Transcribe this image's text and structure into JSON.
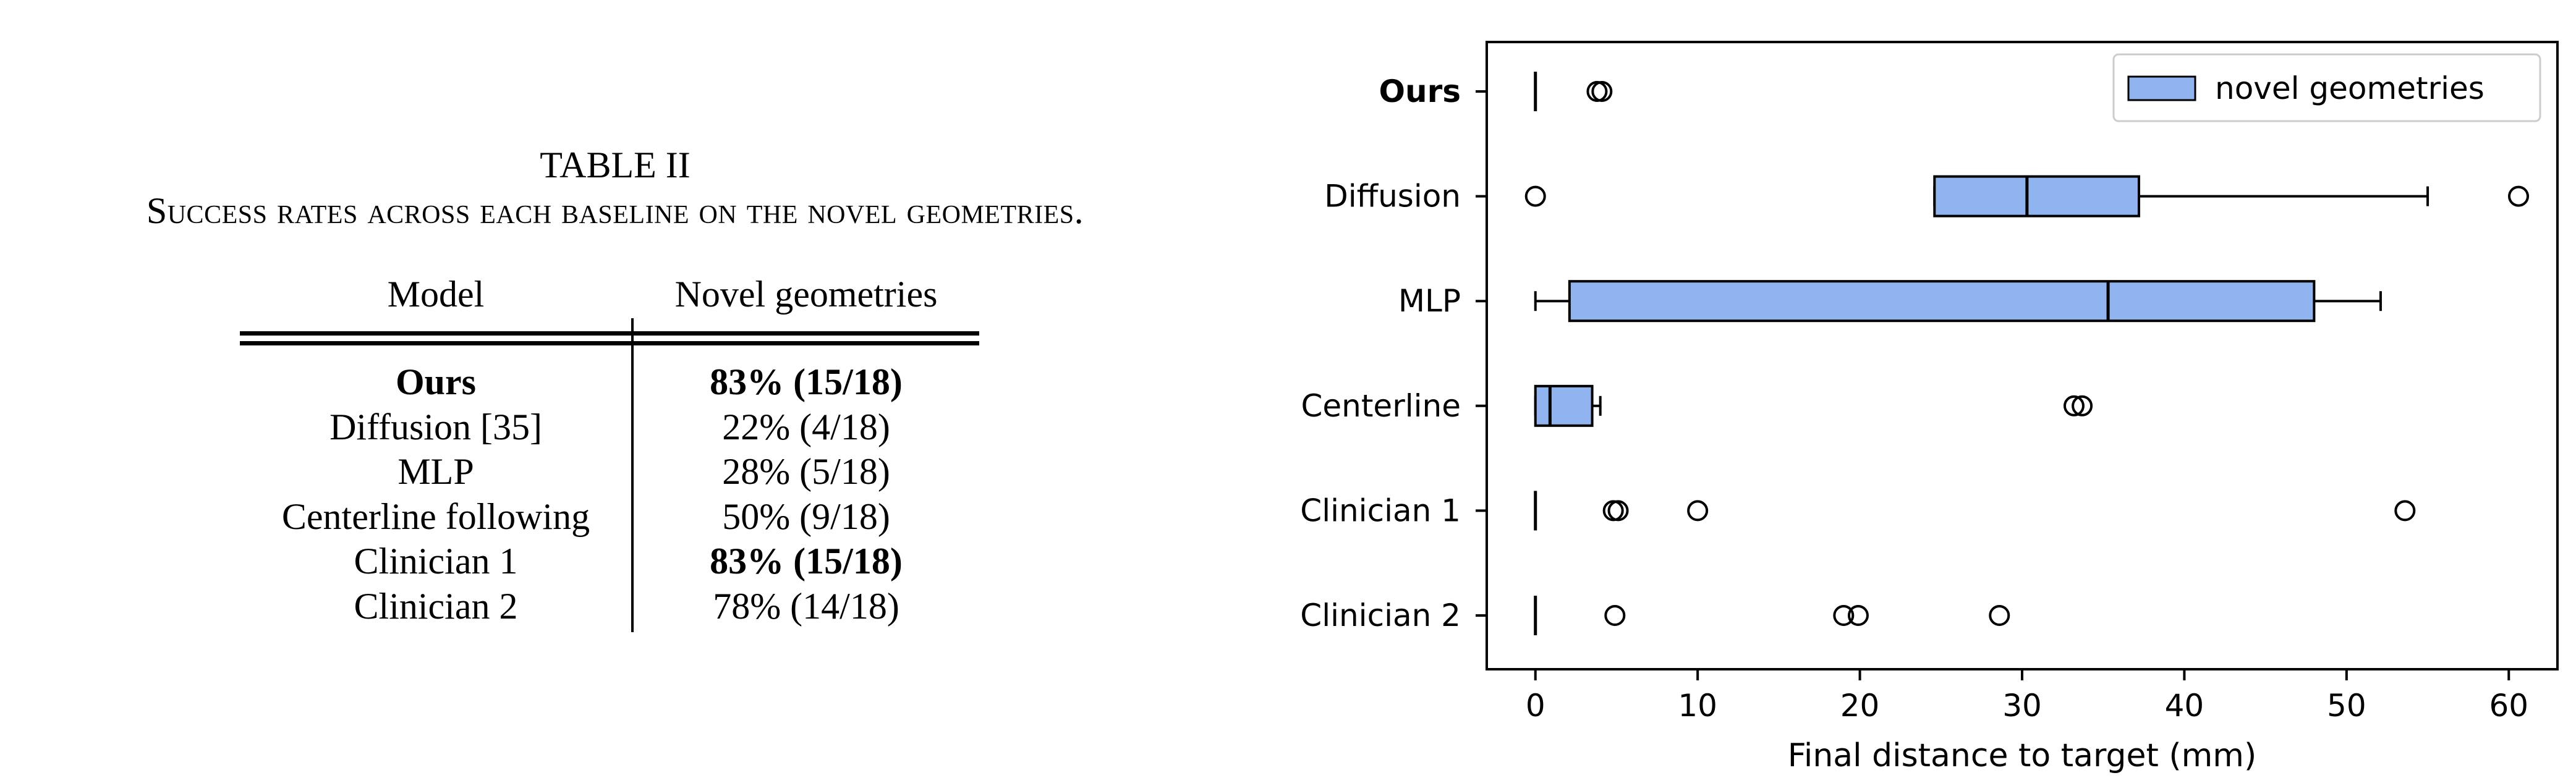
{
  "table": {
    "title": "TABLE II",
    "subtitle": "Success rates across each baseline on the novel geometries.",
    "headers": {
      "model": "Model",
      "novel": "Novel geometries"
    },
    "rows": [
      {
        "model": "Ours",
        "novel": "83% (15/18)",
        "bold": true
      },
      {
        "model": "Diffusion [35]",
        "novel": "22% (4/18)",
        "bold": false
      },
      {
        "model": "MLP",
        "novel": "28% (5/18)",
        "bold": false
      },
      {
        "model": "Centerline following",
        "novel": "50% (9/18)",
        "bold": false
      },
      {
        "model": "Clinician 1",
        "novel": "83% (15/18)",
        "bold": false,
        "bold_value": true
      },
      {
        "model": "Clinician 2",
        "novel": "78% (14/18)",
        "bold": false
      }
    ]
  },
  "chart_data": {
    "type": "boxplot",
    "orientation": "horizontal",
    "xlabel": "Final distance to target (mm)",
    "xlim": [
      -3,
      63
    ],
    "xticks": [
      0,
      10,
      20,
      30,
      40,
      50,
      60
    ],
    "legend": {
      "label": "novel geometries",
      "placement": "top-right"
    },
    "box_color": "#8fb4f0",
    "categories": [
      "Ours",
      "Diffusion",
      "MLP",
      "Centerline",
      "Clinician 1",
      "Clinician 2"
    ],
    "bold_categories": [
      "Ours"
    ],
    "boxes": [
      {
        "label": "Ours",
        "whislo": 0,
        "q1": 0,
        "med": 0,
        "q3": 0,
        "whishi": 0,
        "fliers": [
          3.8,
          4.1
        ]
      },
      {
        "label": "Diffusion",
        "whislo": 24.6,
        "q1": 24.6,
        "med": 30.3,
        "q3": 37.2,
        "whishi": 55.0,
        "fliers": [
          0.0,
          60.6
        ]
      },
      {
        "label": "MLP",
        "whislo": 0,
        "q1": 2.1,
        "med": 35.3,
        "q3": 48.0,
        "whishi": 52.1,
        "fliers": []
      },
      {
        "label": "Centerline",
        "whislo": 0,
        "q1": 0,
        "med": 0.9,
        "q3": 3.5,
        "whishi": 4.0,
        "fliers": [
          33.2,
          33.7
        ]
      },
      {
        "label": "Clinician 1",
        "whislo": 0,
        "q1": 0,
        "med": 0,
        "q3": 0,
        "whishi": 0,
        "fliers": [
          4.8,
          5.1,
          10.0,
          53.6
        ]
      },
      {
        "label": "Clinician 2",
        "whislo": 0,
        "q1": 0,
        "med": 0,
        "q3": 0,
        "whishi": 0,
        "fliers": [
          4.9,
          19.0,
          19.9,
          28.6
        ]
      }
    ]
  }
}
